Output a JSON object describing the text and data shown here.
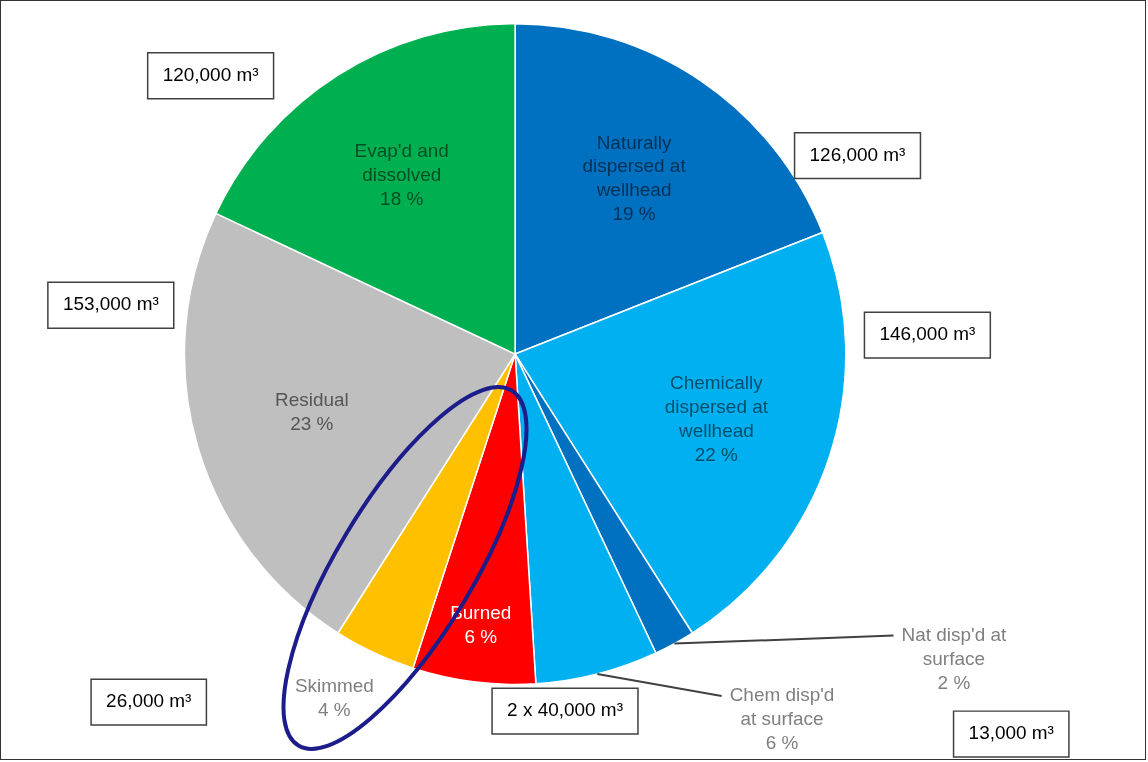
{
  "chart_data": {
    "type": "pie",
    "categories": [
      "Naturally dispersed at wellhead",
      "Chemically dispersed at wellhead",
      "Nat disp'd at surface",
      "Chem disp'd at surface",
      "Burned",
      "Skimmed",
      "Residual",
      "Evap'd and dissolved"
    ],
    "values": [
      19,
      22,
      2,
      6,
      6,
      4,
      23,
      18
    ],
    "value_labels": [
      "19 %",
      "22 %",
      "2 %",
      "6 %",
      "6 %",
      "4 %",
      "23 %",
      "18 %"
    ],
    "colors": [
      "#0070c0",
      "#00b0f0",
      "#0070c0",
      "#00b0f0",
      "#ff0000",
      "#ffc000",
      "#bfbfbf",
      "#00b050"
    ],
    "legend": false,
    "annotations": [
      "120,000 m³",
      "126,000 m³",
      "153,000 m³",
      "146,000 m³",
      "26,000 m³",
      "2 x 40,000 m³",
      "13,000 m³"
    ]
  }
}
